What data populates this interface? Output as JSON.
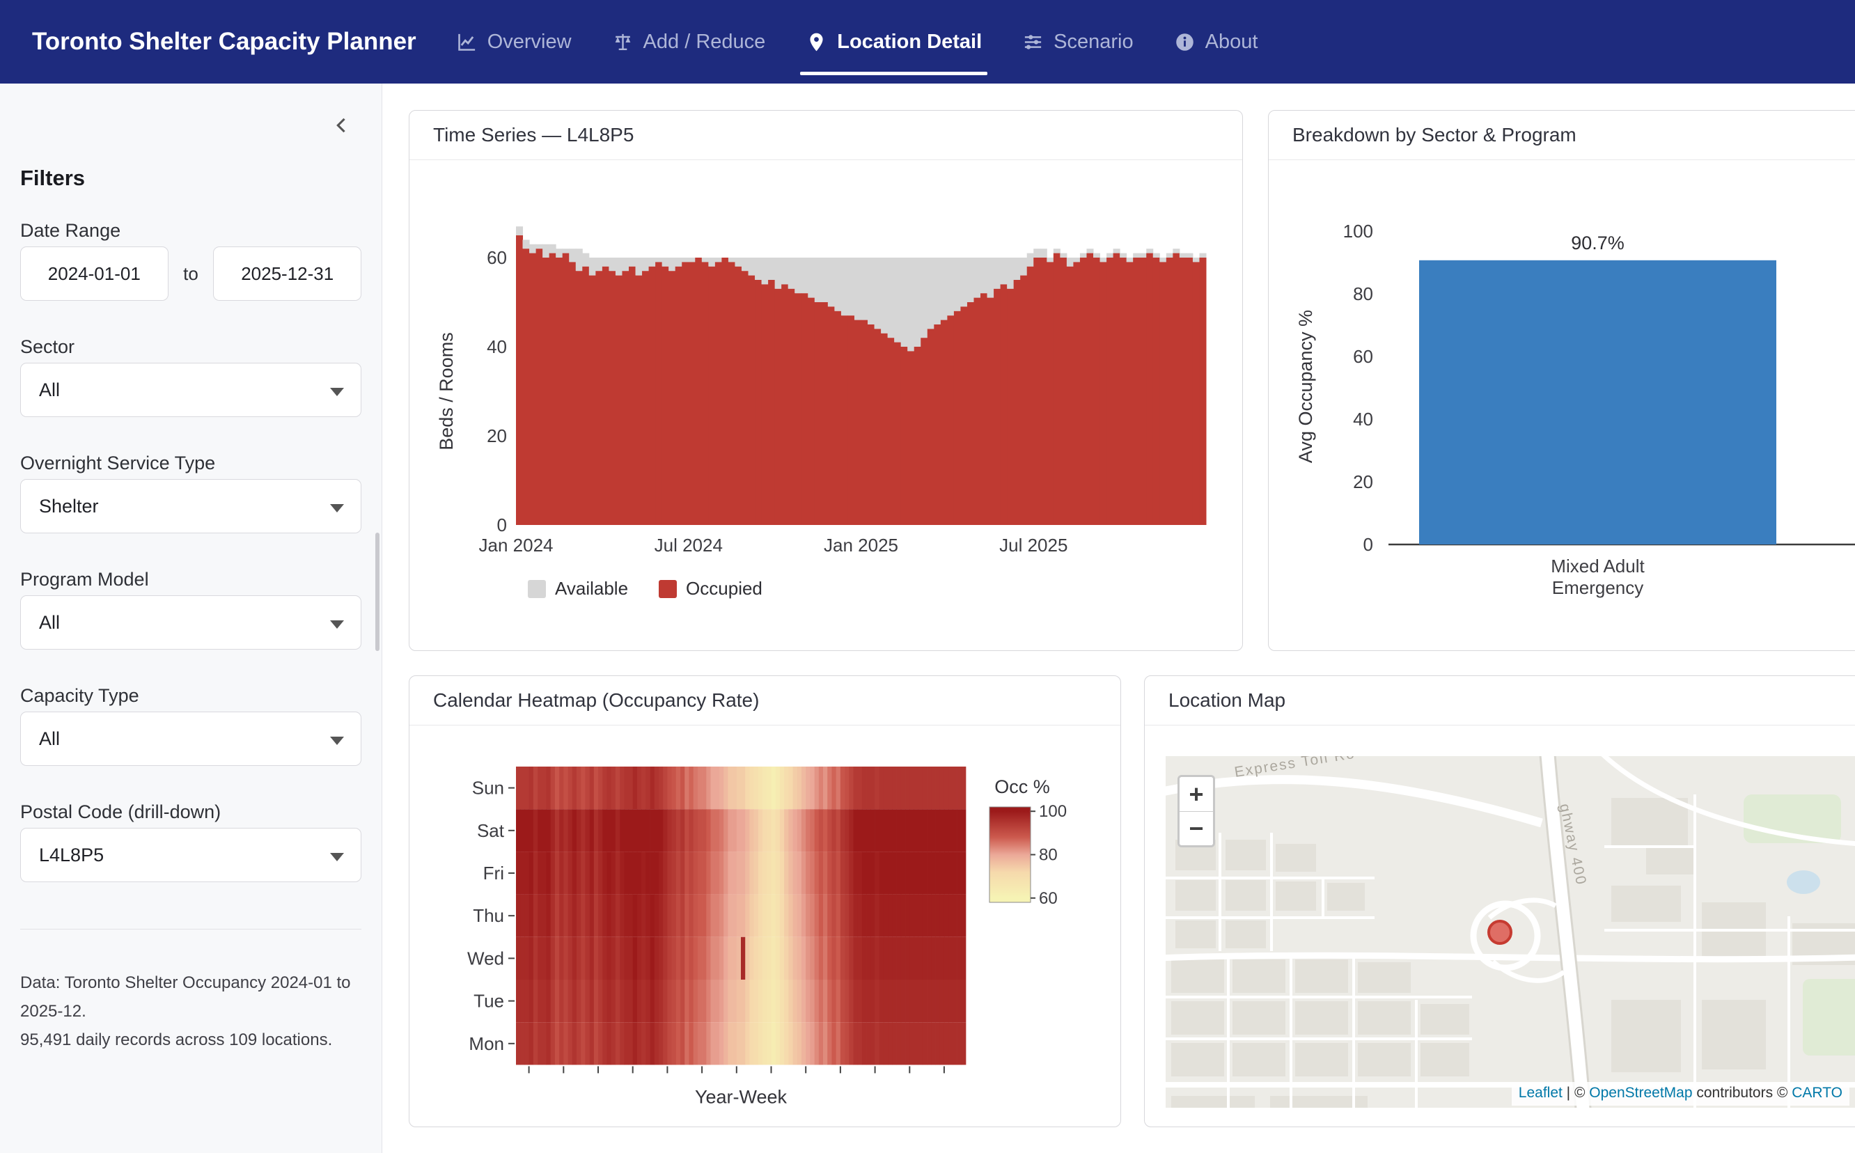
{
  "theme": {
    "navbar": "#1e2b7e",
    "occupied_red": "#bf3a32",
    "available_gray": "#d6d6d6",
    "bar_blue": "#3a7ebf",
    "link_blue": "#0078A8",
    "marker_red": "#dd6157"
  },
  "app": {
    "title": "Toronto Shelter Capacity Planner"
  },
  "nav": {
    "items": [
      {
        "label": "Overview",
        "icon": "line-chart-icon",
        "active": false
      },
      {
        "label": "Add / Reduce",
        "icon": "balance-scale-icon",
        "active": false
      },
      {
        "label": "Location Detail",
        "icon": "map-pin-icon",
        "active": true
      },
      {
        "label": "Scenario",
        "icon": "sliders-icon",
        "active": false
      },
      {
        "label": "About",
        "icon": "info-icon",
        "active": false
      }
    ]
  },
  "sidebar": {
    "heading": "Filters",
    "date_range": {
      "label": "Date Range",
      "start": "2024-01-01",
      "separator": "to",
      "end": "2025-12-31"
    },
    "selects": [
      {
        "label": "Sector",
        "value": "All"
      },
      {
        "label": "Overnight Service Type",
        "value": "Shelter"
      },
      {
        "label": "Program Model",
        "value": "All"
      },
      {
        "label": "Capacity Type",
        "value": "All"
      },
      {
        "label": "Postal Code (drill-down)",
        "value": "L4L8P5"
      }
    ],
    "footer_line1": "Data: Toronto Shelter Occupancy 2024-01 to 2025-12.",
    "footer_line2": "95,491 daily records across 109 locations."
  },
  "map": {
    "title": "Location Map",
    "zoom_in_label": "+",
    "zoom_out_label": "−",
    "road_label_1": "Express Toll Ro",
    "road_label_2": "ghway 400",
    "attribution": {
      "leaflet": "Leaflet",
      "sep1": " | © ",
      "osm": "OpenStreetMap",
      "sep2": " contributors © ",
      "carto": "CARTO"
    }
  },
  "chart_data": [
    {
      "id": "timeseries",
      "type": "bar",
      "stacked": true,
      "title": "Time Series — L4L8P5",
      "ylabel": "Beds / Rooms",
      "ylim": [
        0,
        70
      ],
      "yticks": [
        0,
        20,
        40,
        60
      ],
      "xticks": [
        {
          "pos": 0,
          "label": "Jan 2024"
        },
        {
          "pos": 26,
          "label": "Jul 2024"
        },
        {
          "pos": 52,
          "label": "Jan 2025"
        },
        {
          "pos": 78,
          "label": "Jul 2025"
        }
      ],
      "legend": [
        {
          "label": "Available",
          "color": "#d6d6d6"
        },
        {
          "label": "Occupied",
          "color": "#bf3a32"
        }
      ],
      "colors": {
        "available": "#d6d6d6",
        "occupied": "#bf3a32"
      },
      "series": {
        "capacity": [
          67,
          64,
          63,
          63,
          63,
          63,
          62,
          62,
          62,
          62,
          61,
          60,
          60,
          60,
          60,
          60,
          60,
          60,
          60,
          60,
          60,
          60,
          60,
          60,
          60,
          60,
          60,
          60,
          60,
          60,
          60,
          60,
          60,
          60,
          60,
          60,
          60,
          60,
          60,
          60,
          60,
          60,
          60,
          60,
          60,
          60,
          60,
          60,
          60,
          60,
          60,
          60,
          60,
          60,
          60,
          60,
          60,
          60,
          60,
          60,
          60,
          60,
          60,
          60,
          60,
          60,
          60,
          60,
          60,
          60,
          60,
          60,
          60,
          60,
          60,
          60,
          60,
          61,
          62,
          62,
          60,
          62,
          61,
          60,
          60,
          61,
          62,
          61,
          60,
          61,
          62,
          61,
          60,
          61,
          61,
          62,
          61,
          60,
          61,
          62,
          61,
          61,
          60,
          61
        ],
        "occupied": [
          65,
          62,
          61,
          62,
          60,
          61,
          60,
          61,
          59,
          57,
          58,
          56,
          57,
          58,
          57,
          56,
          57,
          58,
          56,
          57,
          58,
          59,
          58,
          57,
          58,
          59,
          59,
          60,
          59,
          58,
          59,
          60,
          59,
          58,
          57,
          56,
          55,
          54,
          55,
          53,
          54,
          53,
          52,
          52,
          51,
          50,
          50,
          49,
          48,
          47,
          47,
          46,
          46,
          45,
          44,
          43,
          42,
          41,
          40,
          39,
          40,
          42,
          44,
          45,
          46,
          47,
          48,
          49,
          50,
          51,
          52,
          51,
          53,
          54,
          53,
          55,
          56,
          58,
          60,
          60,
          59,
          61,
          60,
          58,
          59,
          60,
          61,
          60,
          59,
          60,
          61,
          60,
          59,
          60,
          60,
          61,
          60,
          59,
          60,
          61,
          60,
          60,
          59,
          60
        ]
      }
    },
    {
      "id": "breakdown",
      "type": "bar",
      "title": "Breakdown by Sector & Program",
      "categories": [
        "Mixed Adult Emergency"
      ],
      "categories_lines": [
        "Mixed Adult",
        "Emergency"
      ],
      "values": [
        90.7
      ],
      "value_labels": [
        "90.7%"
      ],
      "ylabel": "Avg Occupancy %",
      "ylim": [
        0,
        100
      ],
      "yticks": [
        0,
        20,
        40,
        60,
        80,
        100
      ],
      "bar_color": "#3a7ebf"
    },
    {
      "id": "heatmap",
      "type": "heatmap",
      "title": "Calendar Heatmap (Occupancy Rate)",
      "rows": [
        "Sun",
        "Sat",
        "Fri",
        "Thu",
        "Wed",
        "Tue",
        "Mon"
      ],
      "xlabel": "Year-Week",
      "colorbar": {
        "title": "Occ %",
        "ticks": [
          100,
          80,
          60
        ]
      },
      "color_stops": [
        [
          60,
          "#f6f3b4"
        ],
        [
          72,
          "#f6d9ac"
        ],
        [
          80,
          "#eba898"
        ],
        [
          88,
          "#cc5a4e"
        ],
        [
          100,
          "#9c1a1a"
        ]
      ],
      "weekly_occupancy_pct": [
        97,
        97,
        97,
        98,
        95,
        97,
        97,
        98,
        95,
        92,
        95,
        93,
        95,
        97,
        95,
        93,
        95,
        97,
        93,
        95,
        97,
        98,
        97,
        95,
        97,
        98,
        98,
        100,
        98,
        97,
        98,
        100,
        98,
        97,
        95,
        93,
        92,
        90,
        92,
        88,
        90,
        88,
        87,
        87,
        85,
        83,
        83,
        82,
        80,
        78,
        78,
        77,
        77,
        75,
        73,
        72,
        70,
        68,
        67,
        65,
        67,
        70,
        73,
        75,
        77,
        78,
        80,
        82,
        83,
        85,
        87,
        85,
        88,
        90,
        88,
        92,
        93,
        95,
        97,
        97,
        98,
        98,
        98,
        97,
        98,
        98,
        98,
        98,
        98,
        98,
        98,
        98,
        98,
        98,
        98,
        98,
        98,
        98,
        98,
        98,
        98,
        98,
        98,
        98
      ],
      "anomaly": {
        "week_index": 52,
        "row": "Wed",
        "value": 97
      }
    }
  ]
}
